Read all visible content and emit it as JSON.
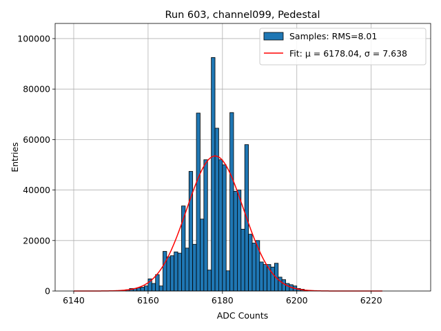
{
  "chart_data": {
    "type": "bar",
    "title": "Run 603, channel099, Pedestal",
    "xlabel": "ADC Counts",
    "ylabel": "Entries",
    "xlim": [
      6135,
      6236
    ],
    "ylim": [
      0,
      106000
    ],
    "xticks": [
      6140,
      6160,
      6180,
      6200,
      6220
    ],
    "yticks": [
      0,
      20000,
      40000,
      60000,
      80000,
      100000
    ],
    "grid": true,
    "legend_position": "top-right",
    "colors": {
      "bars": "#1f77b4",
      "bar_edge": "#000000",
      "fit": "#ff0000",
      "grid": "#b0b0b0"
    },
    "histogram": {
      "name": "Samples: RMS=8.01",
      "bin_width": 1,
      "bins": [
        [
          6154,
          500
        ],
        [
          6155,
          1000
        ],
        [
          6156,
          1000
        ],
        [
          6157,
          1300
        ],
        [
          6158,
          1500
        ],
        [
          6159,
          2000
        ],
        [
          6160,
          4800
        ],
        [
          6161,
          3000
        ],
        [
          6162,
          6500
        ],
        [
          6163,
          2000
        ],
        [
          6164,
          15700
        ],
        [
          6165,
          13500
        ],
        [
          6166,
          14000
        ],
        [
          6167,
          15500
        ],
        [
          6168,
          15000
        ],
        [
          6169,
          33700
        ],
        [
          6170,
          17000
        ],
        [
          6171,
          47400
        ],
        [
          6172,
          18500
        ],
        [
          6173,
          70500
        ],
        [
          6174,
          28500
        ],
        [
          6175,
          52000
        ],
        [
          6176,
          8300
        ],
        [
          6177,
          92500
        ],
        [
          6178,
          64500
        ],
        [
          6179,
          52000
        ],
        [
          6180,
          50000
        ],
        [
          6181,
          8000
        ],
        [
          6182,
          70700
        ],
        [
          6183,
          39500
        ],
        [
          6184,
          40000
        ],
        [
          6185,
          24500
        ],
        [
          6186,
          58000
        ],
        [
          6187,
          22500
        ],
        [
          6188,
          19000
        ],
        [
          6189,
          20000
        ],
        [
          6190,
          11500
        ],
        [
          6191,
          10500
        ],
        [
          6192,
          10500
        ],
        [
          6193,
          9500
        ],
        [
          6194,
          11000
        ],
        [
          6195,
          5500
        ],
        [
          6196,
          4500
        ],
        [
          6197,
          3000
        ],
        [
          6198,
          2500
        ],
        [
          6199,
          2000
        ],
        [
          6200,
          1000
        ],
        [
          6201,
          700
        ],
        [
          6202,
          300
        ]
      ]
    },
    "fit": {
      "name": "Fit: μ = 6178.04, σ = 7.638",
      "mu": 6178.04,
      "sigma": 7.638,
      "amplitude": 53500,
      "x_range": [
        6140,
        6223
      ]
    }
  }
}
